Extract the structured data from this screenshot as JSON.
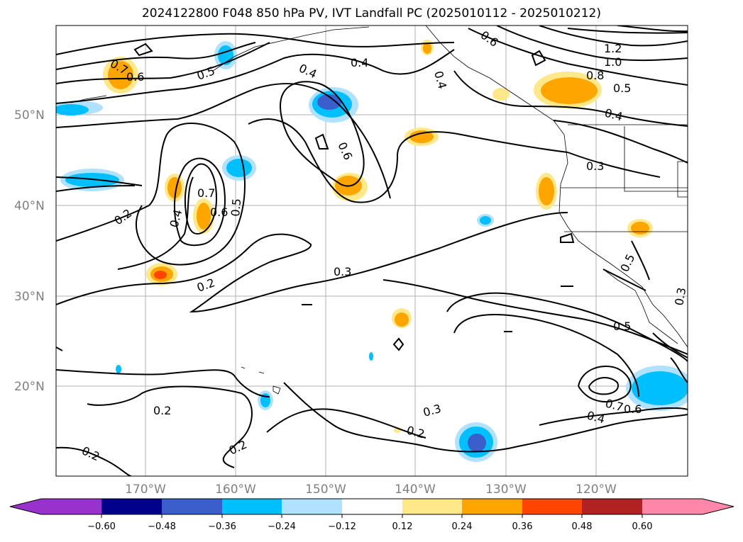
{
  "title": "2024122800 F048 850 hPa PV, IVT Landfall PC (2025010112 - 2025010212)",
  "lat_labels": [
    "50°N",
    "40°N",
    "30°N",
    "20°N"
  ],
  "lon_labels": [
    "170°W",
    "160°W",
    "150°W",
    "140°W",
    "130°W",
    "120°W"
  ],
  "contour_labels": [
    "0.7",
    "0.6",
    "0.5",
    "0.4",
    "0.4",
    "0.6",
    "0.4",
    "0.6",
    "1.2",
    "1.0",
    "0.8",
    "0.5",
    "0.4",
    "0.3",
    "0.7",
    "0.6",
    "0.5",
    "0.4",
    "0.2",
    "0.3",
    "0.2",
    "0.5",
    "0.5",
    "0.3",
    "0.7",
    "0.6",
    "0.4",
    "0.3",
    "0.2",
    "0.2",
    "0.2",
    "0.2"
  ],
  "colorbar": {
    "tick_labels": [
      "−0.60",
      "−0.48",
      "−0.36",
      "−0.24",
      "−0.12",
      "0.12",
      "0.24",
      "0.36",
      "0.48",
      "0.60"
    ],
    "colors": [
      "#9932cc",
      "#00008b",
      "#3a5fcd",
      "#00bfff",
      "#b0e2ff",
      "#ffffff",
      "#ffe88a",
      "#ffa500",
      "#ff4500",
      "#b22222",
      "#ff88aa"
    ]
  }
}
